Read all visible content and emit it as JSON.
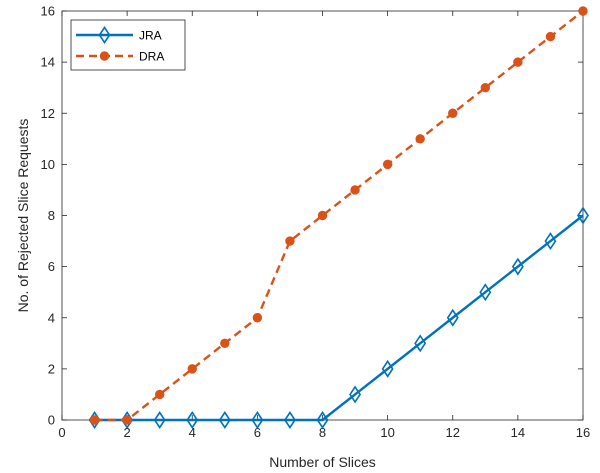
{
  "chart_data": {
    "type": "line",
    "title": "",
    "xlabel": "Number of Slices",
    "ylabel": "No. of Rejected Slice Requests",
    "xlim": [
      0,
      16
    ],
    "ylim": [
      0,
      16
    ],
    "xticks": [
      0,
      2,
      4,
      6,
      8,
      10,
      12,
      14,
      16
    ],
    "yticks": [
      0,
      2,
      4,
      6,
      8,
      10,
      12,
      14,
      16
    ],
    "x": [
      1,
      2,
      3,
      4,
      5,
      6,
      7,
      8,
      9,
      10,
      11,
      12,
      13,
      14,
      15,
      16
    ],
    "grid": false,
    "legend_position": "top-left",
    "series": [
      {
        "name": "JRA",
        "values": [
          0,
          0,
          0,
          0,
          0,
          0,
          0,
          0,
          1,
          2,
          3,
          4,
          5,
          6,
          7,
          8
        ],
        "color": "#0072BD",
        "line_style": "solid",
        "marker": "diamond"
      },
      {
        "name": "DRA",
        "values": [
          0,
          0,
          1,
          2,
          3,
          4,
          7,
          8,
          9,
          10,
          11,
          12,
          13,
          14,
          15,
          16
        ],
        "color": "#D95319",
        "line_style": "dashed",
        "marker": "circle"
      }
    ]
  }
}
